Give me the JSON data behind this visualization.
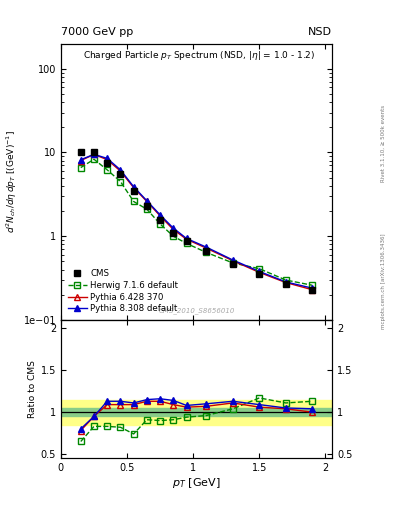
{
  "title_top": "7000 GeV pp",
  "title_right": "NSD",
  "plot_title": "Charged Particle $p_T$ Spectrum (NSD, $|\\eta|$ = 1.0 - 1.2)",
  "ylabel_main": "$d^2N_{ch}/d\\eta\\,dp_T$ [(GeV)$^{-1}$]",
  "ylabel_ratio": "Ratio to CMS",
  "xlabel": "$p_T$ [GeV]",
  "watermark": "CMS_2010_S8656010",
  "right_label_top": "Rivet 3.1.10, ≥ 500k events",
  "right_label_bot": "mcplots.cern.ch [arXiv:1306.3436]",
  "cms_pt": [
    0.15,
    0.25,
    0.35,
    0.45,
    0.55,
    0.65,
    0.75,
    0.85,
    0.95,
    1.1,
    1.3,
    1.5,
    1.7,
    1.9
  ],
  "cms_y": [
    10.2,
    10.0,
    7.5,
    5.5,
    3.5,
    2.3,
    1.55,
    1.1,
    0.87,
    0.67,
    0.46,
    0.35,
    0.27,
    0.23
  ],
  "herwig_pt": [
    0.15,
    0.25,
    0.35,
    0.45,
    0.55,
    0.65,
    0.75,
    0.85,
    0.95,
    1.1,
    1.3,
    1.5,
    1.7,
    1.9
  ],
  "herwig_y": [
    6.6,
    8.3,
    6.2,
    4.5,
    2.6,
    2.1,
    1.4,
    1.0,
    0.82,
    0.64,
    0.48,
    0.41,
    0.3,
    0.26
  ],
  "pythia6_pt": [
    0.15,
    0.25,
    0.35,
    0.45,
    0.55,
    0.65,
    0.75,
    0.85,
    0.95,
    1.1,
    1.3,
    1.5,
    1.7,
    1.9
  ],
  "pythia6_y": [
    8.0,
    9.5,
    8.2,
    6.0,
    3.8,
    2.6,
    1.75,
    1.2,
    0.92,
    0.72,
    0.51,
    0.37,
    0.28,
    0.23
  ],
  "pythia8_pt": [
    0.15,
    0.25,
    0.35,
    0.45,
    0.55,
    0.65,
    0.75,
    0.85,
    0.95,
    1.1,
    1.3,
    1.5,
    1.7,
    1.9
  ],
  "pythia8_y": [
    8.2,
    9.5,
    8.5,
    6.2,
    3.9,
    2.65,
    1.8,
    1.25,
    0.94,
    0.74,
    0.52,
    0.38,
    0.285,
    0.24
  ],
  "herwig_ratio": [
    0.65,
    0.83,
    0.83,
    0.82,
    0.74,
    0.91,
    0.9,
    0.91,
    0.94,
    0.96,
    1.04,
    1.17,
    1.11,
    1.13
  ],
  "pythia6_ratio": [
    0.78,
    0.95,
    1.09,
    1.09,
    1.09,
    1.13,
    1.13,
    1.09,
    1.06,
    1.07,
    1.11,
    1.06,
    1.04,
    1.0
  ],
  "pythia8_ratio": [
    0.8,
    0.95,
    1.13,
    1.13,
    1.11,
    1.15,
    1.16,
    1.14,
    1.08,
    1.1,
    1.13,
    1.09,
    1.05,
    1.04
  ],
  "cms_color": "#000000",
  "herwig_color": "#008800",
  "pythia6_color": "#cc0000",
  "pythia8_color": "#0000cc",
  "band_yellow": [
    0.85,
    1.15
  ],
  "band_green": [
    0.95,
    1.05
  ],
  "ylim_main": [
    0.1,
    200
  ],
  "ylim_ratio": [
    0.45,
    2.1
  ],
  "xlim": [
    0.0,
    2.05
  ]
}
